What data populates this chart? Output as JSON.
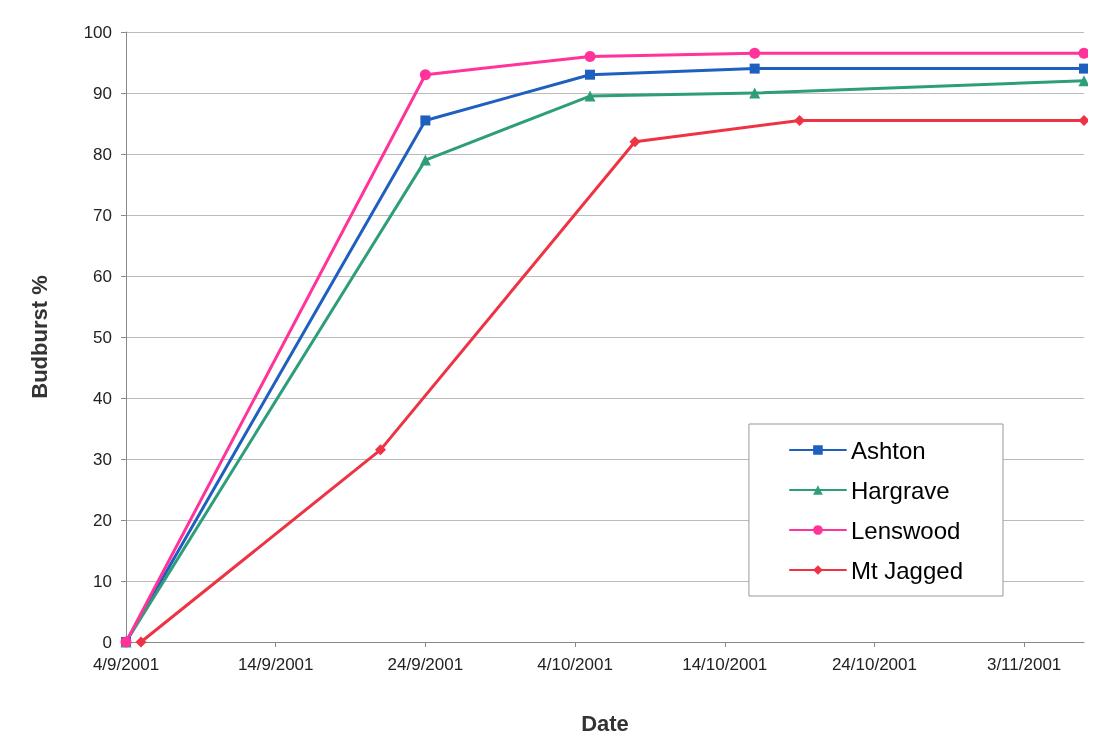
{
  "chart_data": {
    "type": "line",
    "xlabel": "Date",
    "ylabel": "Budburst %",
    "xlim": [
      "2001-09-04",
      "2001-11-07"
    ],
    "ylim": [
      0,
      100
    ],
    "xticks": [
      {
        "value": "2001-09-04",
        "label": "4/9/2001"
      },
      {
        "value": "2001-09-14",
        "label": "14/9/2001"
      },
      {
        "value": "2001-09-24",
        "label": "24/9/2001"
      },
      {
        "value": "2001-10-04",
        "label": "4/10/2001"
      },
      {
        "value": "2001-10-14",
        "label": "14/10/2001"
      },
      {
        "value": "2001-10-24",
        "label": "24/10/2001"
      },
      {
        "value": "2001-11-03",
        "label": "3/11/2001"
      }
    ],
    "yticks": [
      0,
      10,
      20,
      30,
      40,
      50,
      60,
      70,
      80,
      90,
      100
    ],
    "grid": "y",
    "legend": "bottom right",
    "line_style": "solid",
    "series": [
      {
        "name": "Ashton",
        "color": "#1f5fbf",
        "marker": "square",
        "x": [
          "2001-09-04",
          "2001-09-24",
          "2001-10-05",
          "2001-10-16",
          "2001-11-07"
        ],
        "values": [
          0,
          85.5,
          93,
          94,
          94
        ]
      },
      {
        "name": "Hargrave",
        "color": "#2e9e7a",
        "marker": "triangle",
        "x": [
          "2001-09-04",
          "2001-09-24",
          "2001-10-05",
          "2001-10-16",
          "2001-11-07"
        ],
        "values": [
          0,
          79,
          89.5,
          90,
          92
        ]
      },
      {
        "name": "Lenswood",
        "color": "#ff3399",
        "marker": "circle",
        "x": [
          "2001-09-04",
          "2001-09-24",
          "2001-10-05",
          "2001-10-16",
          "2001-11-07"
        ],
        "values": [
          0,
          93,
          96,
          96.5,
          96.5
        ]
      },
      {
        "name": "Mt Jagged",
        "color": "#ee3344",
        "marker": "diamond",
        "x": [
          "2001-09-05",
          "2001-09-21",
          "2001-10-08",
          "2001-10-19",
          "2001-11-07"
        ],
        "values": [
          0,
          31.5,
          82,
          85.5,
          85.5
        ]
      }
    ]
  }
}
